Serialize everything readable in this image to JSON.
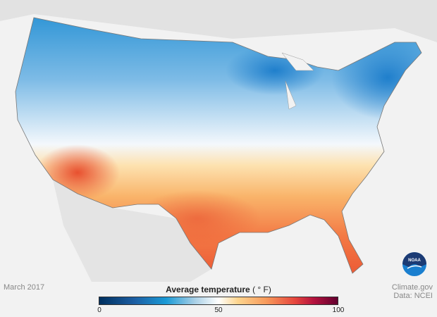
{
  "map": {
    "subject": "contiguous United States average temperature",
    "colors": {
      "cold": "#1a8fd6",
      "neutral": "#ffffff",
      "warm": "#f06a3a"
    }
  },
  "date": "March 2017",
  "legend": {
    "title": "Average temperature",
    "unit": "( ° F)",
    "min": "0",
    "mid": "50",
    "max": "100"
  },
  "credit": {
    "line1": "Climate.gov",
    "line2": "Data: NCEI"
  },
  "logo": {
    "text": "NOAA"
  }
}
